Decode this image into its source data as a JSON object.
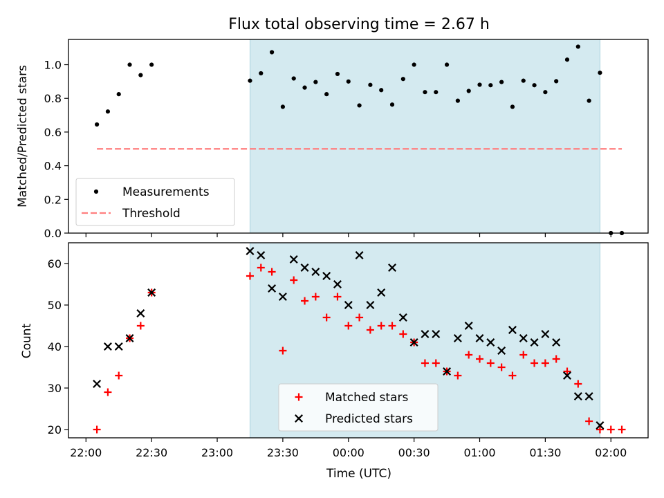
{
  "chart_data": [
    {
      "type": "scatter",
      "title": "Flux total observing time = 2.67 h",
      "xlabel": "",
      "ylabel": "Matched/Predicted stars",
      "ylim": [
        0,
        1.15
      ],
      "xticks": [
        "22:00",
        "22:30",
        "23:00",
        "23:30",
        "00:00",
        "00:30",
        "01:00",
        "01:30",
        "02:00"
      ],
      "yticks": [
        "0.0",
        "0.2",
        "0.4",
        "0.6",
        "0.8",
        "1.0"
      ],
      "shaded_interval": [
        "23:15",
        "01:55"
      ],
      "shaded_color": "#d4eaf0",
      "legend_position": "lower-left",
      "series": [
        {
          "name": "Measurements",
          "marker": "dot",
          "color": "#000000",
          "x": [
            "22:05",
            "22:10",
            "22:15",
            "22:20",
            "22:25",
            "22:30",
            "23:15",
            "23:20",
            "23:25",
            "23:30",
            "23:35",
            "23:40",
            "23:45",
            "23:50",
            "23:55",
            "00:00",
            "00:05",
            "00:10",
            "00:15",
            "00:20",
            "00:25",
            "00:30",
            "00:35",
            "00:40",
            "00:45",
            "00:50",
            "00:55",
            "01:00",
            "01:05",
            "01:10",
            "01:15",
            "01:20",
            "01:25",
            "01:30",
            "01:35",
            "01:40",
            "01:45",
            "01:50",
            "01:55",
            "02:00",
            "02:05"
          ],
          "values": [
            0.645,
            0.722,
            0.825,
            1.0,
            0.938,
            1.0,
            0.905,
            0.949,
            1.074,
            0.75,
            0.918,
            0.864,
            0.897,
            0.825,
            0.945,
            0.9,
            0.758,
            0.88,
            0.849,
            0.763,
            0.915,
            1.0,
            0.837,
            0.837,
            1.0,
            0.786,
            0.844,
            0.881,
            0.878,
            0.897,
            0.75,
            0.905,
            0.878,
            0.837,
            0.902,
            1.03,
            1.107,
            0.786,
            0.952,
            0.0,
            0.0
          ]
        },
        {
          "name": "Threshold",
          "style": "dashed",
          "color": "#ff7f7f",
          "x": [
            "22:05",
            "02:05"
          ],
          "values": [
            0.5,
            0.5
          ]
        }
      ]
    },
    {
      "type": "scatter",
      "title": "",
      "xlabel": "Time (UTC)",
      "ylabel": "Count",
      "ylim": [
        18,
        65
      ],
      "xticks": [
        "22:00",
        "22:30",
        "23:00",
        "23:30",
        "00:00",
        "00:30",
        "01:00",
        "01:30",
        "02:00"
      ],
      "yticks": [
        "20",
        "30",
        "40",
        "50",
        "60"
      ],
      "shaded_interval": [
        "23:15",
        "01:55"
      ],
      "shaded_color": "#d4eaf0",
      "legend_position": "lower-center",
      "series": [
        {
          "name": "Matched stars",
          "marker": "plus",
          "color": "#ff0000",
          "x": [
            "22:05",
            "22:10",
            "22:15",
            "22:20",
            "22:25",
            "22:30",
            "23:15",
            "23:20",
            "23:25",
            "23:30",
            "23:35",
            "23:40",
            "23:45",
            "23:50",
            "23:55",
            "00:00",
            "00:05",
            "00:10",
            "00:15",
            "00:20",
            "00:25",
            "00:30",
            "00:35",
            "00:40",
            "00:45",
            "00:50",
            "00:55",
            "01:00",
            "01:05",
            "01:10",
            "01:15",
            "01:20",
            "01:25",
            "01:30",
            "01:35",
            "01:40",
            "01:45",
            "01:50",
            "01:55",
            "02:00",
            "02:05"
          ],
          "values": [
            20,
            29,
            33,
            42,
            45,
            53,
            57,
            59,
            58,
            39,
            56,
            51,
            52,
            47,
            52,
            45,
            47,
            44,
            45,
            45,
            43,
            41,
            36,
            36,
            34,
            33,
            38,
            37,
            36,
            35,
            33,
            38,
            36,
            36,
            37,
            34,
            31,
            22,
            20,
            20,
            20
          ]
        },
        {
          "name": "Predicted stars",
          "marker": "x",
          "color": "#000000",
          "x": [
            "22:05",
            "22:10",
            "22:15",
            "22:20",
            "22:25",
            "22:30",
            "23:15",
            "23:20",
            "23:25",
            "23:30",
            "23:35",
            "23:40",
            "23:45",
            "23:50",
            "23:55",
            "00:00",
            "00:05",
            "00:10",
            "00:15",
            "00:20",
            "00:25",
            "00:30",
            "00:35",
            "00:40",
            "00:45",
            "00:50",
            "00:55",
            "01:00",
            "01:05",
            "01:10",
            "01:15",
            "01:20",
            "01:25",
            "01:30",
            "01:35",
            "01:40",
            "01:45",
            "01:50",
            "01:55"
          ],
          "values": [
            31,
            40,
            40,
            42,
            48,
            53,
            63,
            62,
            54,
            52,
            61,
            59,
            58,
            57,
            55,
            50,
            62,
            50,
            53,
            59,
            47,
            41,
            43,
            43,
            34,
            42,
            45,
            42,
            41,
            39,
            44,
            42,
            41,
            43,
            41,
            33,
            28,
            28,
            21
          ]
        }
      ]
    }
  ]
}
